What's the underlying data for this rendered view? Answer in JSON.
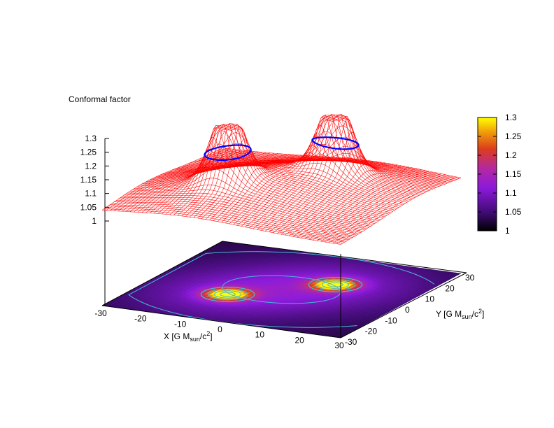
{
  "chart_data": {
    "type": "surface",
    "title": "Conformal factor",
    "xlabel": {
      "main": "X [G M",
      "sub": "sun",
      "tail": "/c",
      "sup": "2",
      "close": "]"
    },
    "ylabel": {
      "main": "Y [G M",
      "sub": "sun",
      "tail": "/c",
      "sup": "2",
      "close": "]"
    },
    "xlim": [
      -30,
      30
    ],
    "ylim": [
      -30,
      30
    ],
    "zlim": [
      1,
      1.3
    ],
    "x_ticks": [
      "-30",
      "-20",
      "-10",
      "0",
      "10",
      "20",
      "30"
    ],
    "y_ticks": [
      "-30",
      "-20",
      "-10",
      "0",
      "10",
      "20",
      "30"
    ],
    "z_ticks": [
      "1",
      "1.05",
      "1.1",
      "1.15",
      "1.2",
      "1.25",
      "1.3"
    ],
    "x_tick_values": [
      -30,
      -20,
      -10,
      0,
      10,
      20,
      30
    ],
    "y_tick_values": [
      -30,
      -20,
      -10,
      0,
      10,
      20,
      30
    ],
    "z_tick_values": [
      1,
      1.05,
      1.1,
      1.15,
      1.2,
      1.25,
      1.3
    ],
    "colorbar": {
      "range": [
        1,
        1.3
      ],
      "tick_labels": [
        "1",
        "1.05",
        "1.1",
        "1.15",
        "1.2",
        "1.25",
        "1.3"
      ],
      "tick_values": [
        1,
        1.05,
        1.1,
        1.15,
        1.2,
        1.25,
        1.3
      ]
    },
    "peaks": [
      {
        "x": -9,
        "y": -9,
        "z": 1.3
      },
      {
        "x": 9,
        "y": 9,
        "z": 1.3
      }
    ],
    "base_value": 1.03,
    "surface_color": "#ff0000",
    "horizon_color": "#0000ff",
    "contour_color": "#48b8d8"
  }
}
